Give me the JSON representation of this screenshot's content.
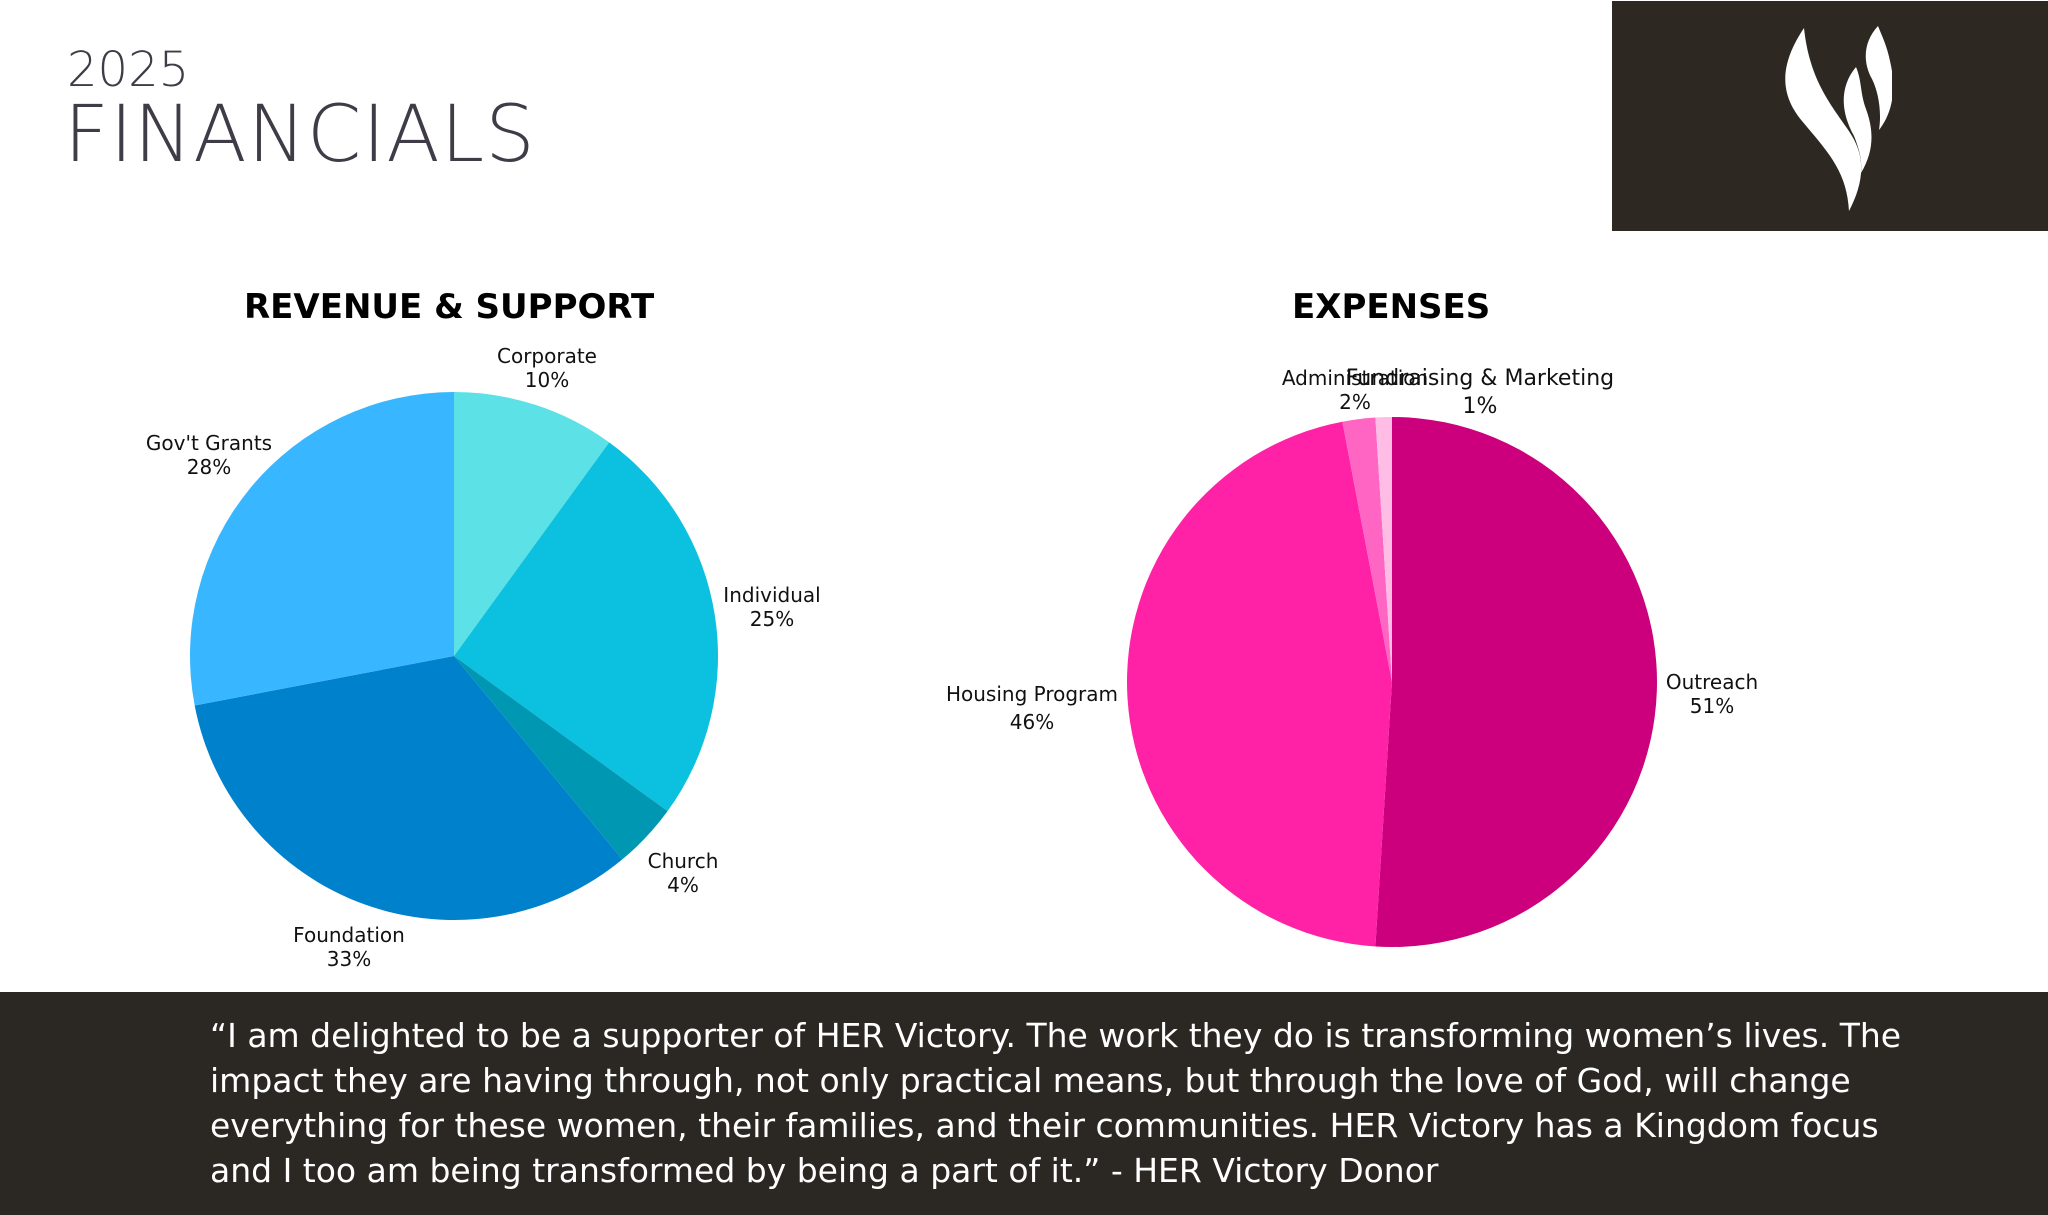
{
  "header": {
    "year": "2025",
    "title": "FINANCIALS"
  },
  "logo": {
    "icon": "flame-logo-icon",
    "background": "#2d2822"
  },
  "chart_data": [
    {
      "type": "pie",
      "title": "REVENUE & SUPPORT",
      "categories": [
        "Corporate",
        "Individual",
        "Church",
        "Foundation",
        "Gov't Grants"
      ],
      "values": [
        10,
        25,
        4,
        33,
        28
      ],
      "labels": [
        "10%",
        "25%",
        "4%",
        "33%",
        "28%"
      ],
      "colors": [
        "#5ce1e6",
        "#0cc0df",
        "#0097b2",
        "#0081cc",
        "#38b6ff"
      ],
      "start_angle": "12 o'clock, clockwise",
      "legend": "none (inline labels)"
    },
    {
      "type": "pie",
      "title": "EXPENSES",
      "categories": [
        "Outreach",
        "Housing Program",
        "Administration",
        "Fundraising & Marketing"
      ],
      "values": [
        51,
        46,
        2,
        1
      ],
      "labels": [
        "51%",
        "46%",
        "2%",
        "1%"
      ],
      "colors": [
        "#cc007c",
        "#ff22a6",
        "#ff66c4",
        "#ffbde6"
      ],
      "start_angle": "12 o'clock, clockwise",
      "legend": "none (inline labels)"
    }
  ],
  "revenue_labels": [
    {
      "name": "Corporate",
      "pct": "10%"
    },
    {
      "name": "Individual",
      "pct": "25%"
    },
    {
      "name": "Church",
      "pct": "4%"
    },
    {
      "name": "Foundation",
      "pct": "33%"
    },
    {
      "name": "Gov't Grants",
      "pct": "28%"
    }
  ],
  "expense_labels": [
    {
      "name": "Outreach",
      "pct": "51%"
    },
    {
      "name": "Housing Program",
      "pct": "46%"
    },
    {
      "name": "Administration",
      "pct": "2%"
    },
    {
      "name": "Fundraising & Marketing",
      "pct": "1%"
    }
  ],
  "quote": {
    "text": "“I am delighted to be a supporter of HER Victory. The work they do is transforming women’s lives. The impact they are having through, not only practical means, but through the love of God, will change everything for these women, their families, and their communities. HER Victory has a Kingdom focus and I too am being transformed by being a part of it.” - HER Victory Donor"
  }
}
